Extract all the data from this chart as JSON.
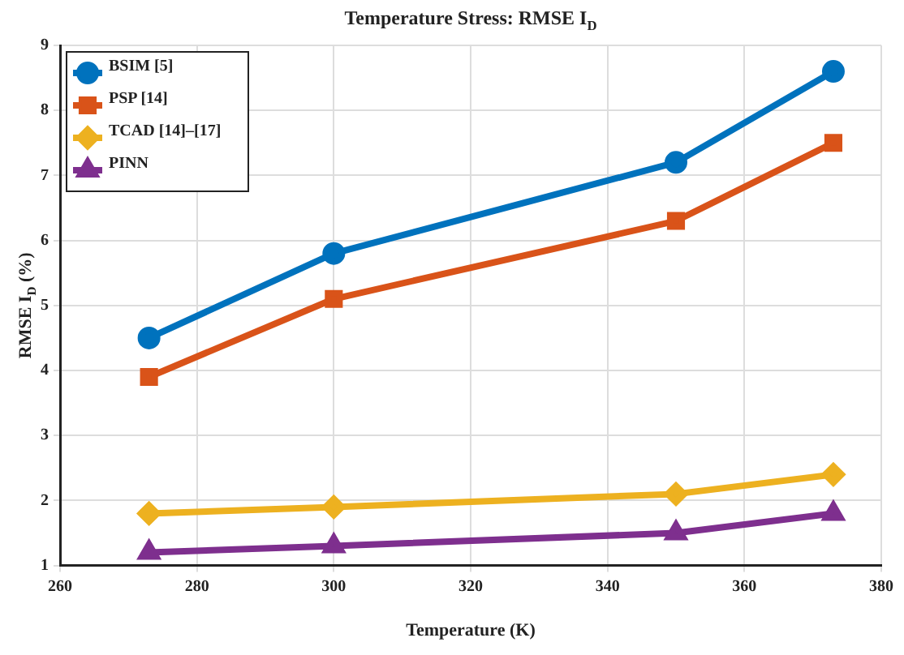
{
  "chart_data": {
    "type": "line",
    "title": "Temperature Stress: RMSE I$_{D}$",
    "xlabel": "Temperature (K)",
    "ylabel": "RMSE I$_{D}$ (%)",
    "x": [
      273,
      300,
      350,
      373
    ],
    "series": [
      {
        "name": "BSIM [5]",
        "color": "#0072bd",
        "marker": "circle",
        "values": [
          4.5,
          5.8,
          7.2,
          8.6
        ]
      },
      {
        "name": "PSP [14]",
        "color": "#d95319",
        "marker": "square",
        "values": [
          3.9,
          5.1,
          6.3,
          7.5
        ]
      },
      {
        "name": "TCAD [14]–[17]",
        "color": "#edb120",
        "marker": "diamond",
        "values": [
          1.8,
          1.9,
          2.1,
          2.4
        ]
      },
      {
        "name": "PINN",
        "color": "#7e2f8e",
        "marker": "triangle",
        "values": [
          1.2,
          1.3,
          1.5,
          1.8
        ]
      }
    ],
    "xlim": [
      260,
      380
    ],
    "xticks": [
      260,
      280,
      300,
      320,
      340,
      360,
      380
    ],
    "ylim": [
      1,
      9
    ],
    "yticks": [
      1,
      2,
      3,
      4,
      5,
      6,
      7,
      8,
      9
    ],
    "grid": true,
    "legend": "top left",
    "line_style": "solid"
  }
}
